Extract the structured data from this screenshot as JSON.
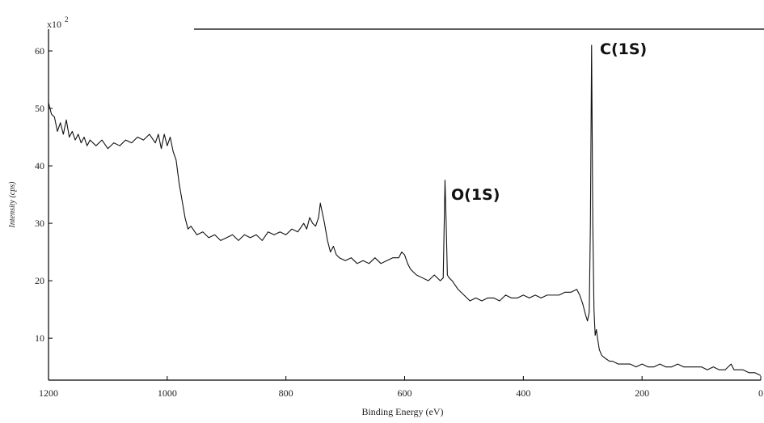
{
  "chart_data": {
    "type": "line",
    "x_label": "Binding Energy (eV)",
    "y_label": "Intensity (cps)",
    "y_scale_label": "x10",
    "y_scale_exponent": "2",
    "annotations": [
      "O(1S)",
      "C(1S)"
    ],
    "xlim": [
      1200,
      0
    ],
    "xticks": [
      1200,
      1000,
      800,
      600,
      400,
      200,
      0
    ],
    "ylim": [
      2.7,
      63.8
    ],
    "yticks": [
      10,
      20,
      30,
      40,
      50,
      60
    ],
    "x": [
      1200,
      1195,
      1190,
      1185,
      1180,
      1175,
      1170,
      1165,
      1160,
      1155,
      1150,
      1145,
      1140,
      1135,
      1130,
      1120,
      1110,
      1100,
      1090,
      1080,
      1070,
      1060,
      1050,
      1040,
      1030,
      1020,
      1015,
      1010,
      1005,
      1000,
      995,
      990,
      985,
      980,
      975,
      970,
      965,
      960,
      950,
      940,
      930,
      920,
      910,
      900,
      890,
      880,
      870,
      860,
      850,
      840,
      830,
      820,
      810,
      800,
      790,
      780,
      770,
      765,
      760,
      755,
      750,
      745,
      742,
      738,
      735,
      730,
      725,
      720,
      715,
      710,
      700,
      690,
      680,
      670,
      660,
      650,
      640,
      630,
      620,
      610,
      605,
      600,
      595,
      590,
      585,
      580,
      570,
      560,
      550,
      540,
      535,
      532,
      530,
      528,
      525,
      520,
      510,
      500,
      490,
      480,
      470,
      460,
      450,
      440,
      430,
      420,
      410,
      400,
      390,
      380,
      370,
      360,
      350,
      340,
      330,
      320,
      310,
      305,
      300,
      295,
      292,
      289,
      287,
      285,
      283,
      281,
      279,
      277,
      275,
      272,
      268,
      262,
      255,
      250,
      240,
      230,
      220,
      210,
      200,
      190,
      180,
      170,
      160,
      150,
      140,
      130,
      120,
      110,
      100,
      90,
      80,
      70,
      60,
      50,
      45,
      40,
      30,
      20,
      10,
      0
    ],
    "series": [
      {
        "color": "#111111",
        "values": [
          51,
          49,
          48.5,
          46,
          47.5,
          45.5,
          48,
          45,
          46,
          44.5,
          45.5,
          44,
          45,
          43.5,
          44.5,
          43.5,
          44.5,
          43,
          44,
          43.5,
          44.5,
          44,
          45,
          44.5,
          45.5,
          44,
          45.5,
          43,
          45.5,
          43.5,
          45,
          42.5,
          41,
          37,
          34,
          31,
          29,
          29.5,
          28,
          28.5,
          27.5,
          28,
          27,
          27.5,
          28,
          27,
          28,
          27.5,
          28,
          27,
          28.5,
          28,
          28.5,
          28,
          29,
          28.5,
          30,
          29,
          31,
          30,
          29.5,
          31,
          33.5,
          31.5,
          30,
          27,
          25,
          26,
          24.5,
          24,
          23.5,
          24,
          23,
          23.5,
          23,
          24,
          23,
          23.5,
          24,
          24,
          25,
          24.5,
          23,
          22,
          21.5,
          21,
          20.5,
          20,
          21,
          20,
          20.5,
          37.5,
          30,
          21,
          20.5,
          20,
          18.5,
          17.5,
          16.5,
          17,
          16.5,
          17,
          17,
          16.5,
          17.5,
          17,
          17,
          17.5,
          17,
          17.5,
          17,
          17.5,
          17.5,
          17.5,
          18,
          18,
          18.5,
          17.5,
          16,
          14,
          13,
          14.5,
          30,
          61,
          30,
          15,
          10.5,
          11.5,
          10,
          8,
          7,
          6.5,
          6,
          6,
          5.5,
          5.5,
          5.5,
          5,
          5.5,
          5,
          5,
          5.5,
          5,
          5,
          5.5,
          5,
          5,
          5,
          5,
          4.5,
          5,
          4.5,
          4.5,
          5.5,
          4.5,
          4.5,
          4.5,
          4,
          4,
          3.5
        ]
      }
    ]
  }
}
